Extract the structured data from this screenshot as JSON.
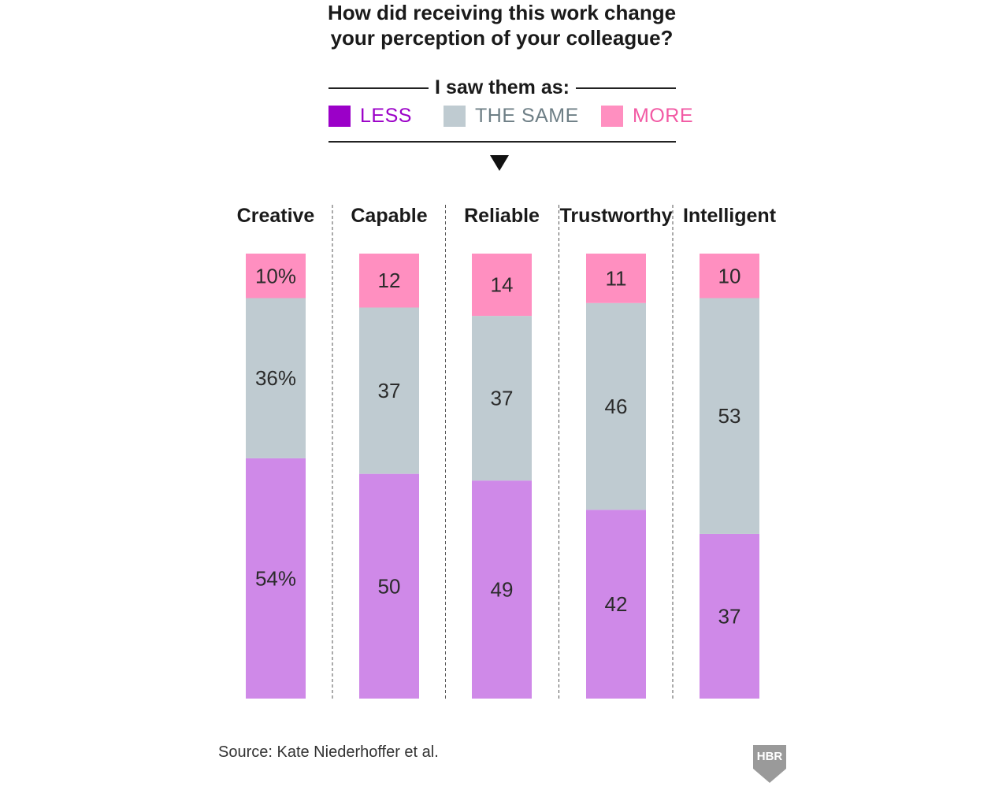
{
  "title": {
    "line1": "How did receiving this work change",
    "line2": "your perception of your colleague?"
  },
  "legend": {
    "heading": "I saw them as:",
    "items": [
      {
        "key": "less",
        "label": "LESS",
        "color": "#9b00c8"
      },
      {
        "key": "same",
        "label": "THE SAME",
        "color": "#bfcbd1"
      },
      {
        "key": "more",
        "label": "MORE",
        "color": "#ff8fc0"
      }
    ]
  },
  "chart_data": {
    "type": "bar",
    "stacked": true,
    "orientation": "vertical",
    "categories": [
      "Creative",
      "Capable",
      "Reliable",
      "Trustworthy",
      "Intelligent"
    ],
    "series": [
      {
        "name": "LESS",
        "color": "#cf89e8",
        "values": [
          54,
          50,
          49,
          42,
          37
        ],
        "labels": [
          "54%",
          "50",
          "49",
          "42",
          "37"
        ]
      },
      {
        "name": "THE SAME",
        "color": "#bfcbd1",
        "values": [
          36,
          37,
          37,
          46,
          53
        ],
        "labels": [
          "36%",
          "37",
          "37",
          "46",
          "53"
        ]
      },
      {
        "name": "MORE",
        "color": "#ff8fc0",
        "values": [
          10,
          12,
          14,
          11,
          10
        ],
        "labels": [
          "10%",
          "12",
          "14",
          "11",
          "10"
        ]
      }
    ],
    "title": "How did receiving this work change your perception of your colleague?",
    "xlabel": "",
    "ylabel": "",
    "ylim": [
      0,
      100
    ]
  },
  "source": "Source: Kate Niederhoffer et al.",
  "logo": "HBR"
}
